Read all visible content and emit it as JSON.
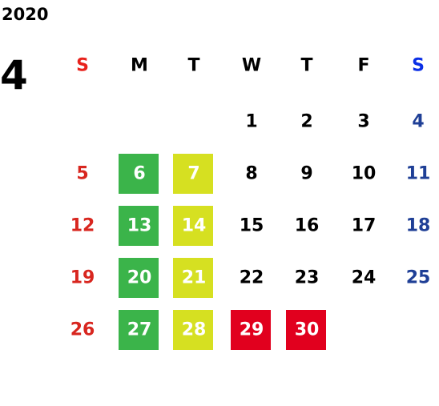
{
  "calendar": {
    "year": "2020",
    "month": "4",
    "weekdays": [
      {
        "label": "S",
        "color": "#e8221c",
        "day_color": "#d8261f"
      },
      {
        "label": "M",
        "color": "#000000",
        "day_color": "#000000"
      },
      {
        "label": "T",
        "color": "#000000",
        "day_color": "#000000"
      },
      {
        "label": "W",
        "color": "#000000",
        "day_color": "#000000"
      },
      {
        "label": "T",
        "color": "#000000",
        "day_color": "#000000"
      },
      {
        "label": "F",
        "color": "#000000",
        "day_color": "#000000"
      },
      {
        "label": "S",
        "color": "#0b2fe6",
        "day_color": "#1f3f96"
      }
    ],
    "weeks": [
      [
        null,
        null,
        null,
        {
          "day": 1
        },
        {
          "day": 2
        },
        {
          "day": 3
        },
        {
          "day": 4
        }
      ],
      [
        {
          "day": 5
        },
        {
          "day": 6,
          "fill": "#3bb44a"
        },
        {
          "day": 7,
          "fill": "#d6e021"
        },
        {
          "day": 8
        },
        {
          "day": 9
        },
        {
          "day": 10
        },
        {
          "day": 11
        }
      ],
      [
        {
          "day": 12
        },
        {
          "day": 13,
          "fill": "#3bb44a"
        },
        {
          "day": 14,
          "fill": "#d6e021"
        },
        {
          "day": 15
        },
        {
          "day": 16
        },
        {
          "day": 17
        },
        {
          "day": 18
        }
      ],
      [
        {
          "day": 19
        },
        {
          "day": 20,
          "fill": "#3bb44a"
        },
        {
          "day": 21,
          "fill": "#d6e021"
        },
        {
          "day": 22
        },
        {
          "day": 23
        },
        {
          "day": 24
        },
        {
          "day": 25
        }
      ],
      [
        {
          "day": 26
        },
        {
          "day": 27,
          "fill": "#3bb44a"
        },
        {
          "day": 28,
          "fill": "#d6e021"
        },
        {
          "day": 29,
          "fill": "#e1001e"
        },
        {
          "day": 30,
          "fill": "#e1001e"
        },
        null,
        null
      ]
    ]
  }
}
